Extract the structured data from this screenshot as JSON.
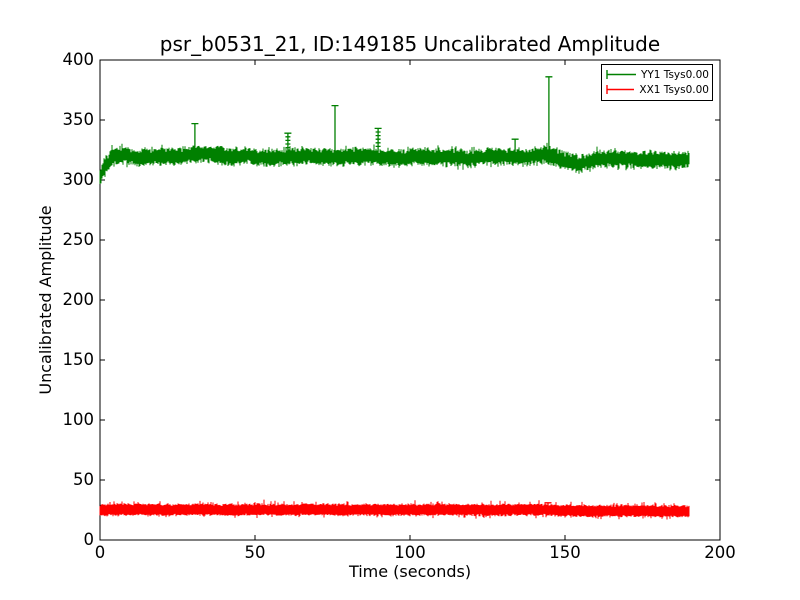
{
  "figure": {
    "title": "psr_b0531_21, ID:149185 Uncalibrated Amplitude",
    "xlabel": "Time (seconds)",
    "ylabel": "Uncalibrated Amplitude",
    "background": "#ffffff",
    "frame_color": "#000000"
  },
  "chart_data": {
    "type": "line",
    "title": "psr_b0531_21, ID:149185 Uncalibrated Amplitude",
    "xlabel": "Time (seconds)",
    "ylabel": "Uncalibrated Amplitude",
    "xlim": [
      0,
      200
    ],
    "ylim": [
      0,
      400
    ],
    "xticks": [
      0,
      50,
      100,
      150,
      200
    ],
    "yticks": [
      0,
      50,
      100,
      150,
      200,
      250,
      300,
      350,
      400
    ],
    "grid": false,
    "marker": "+",
    "legend": {
      "position": "upper right",
      "entries": [
        {
          "label": "YY1 Tsys0.00",
          "color": "#008000"
        },
        {
          "label": "XX1 Tsys0.00",
          "color": "#ff0000"
        }
      ]
    },
    "series": [
      {
        "name": "YY1 Tsys0.00",
        "color": "#008000",
        "t_range": [
          0,
          190
        ],
        "band_half_width": 4.5,
        "band_half_width_jitter": 2.5,
        "center_jitter": 1.5,
        "noise_seed": 42,
        "center_points": [
          [
            0,
            302
          ],
          [
            1,
            308
          ],
          [
            2,
            313
          ],
          [
            4,
            319
          ],
          [
            8,
            321
          ],
          [
            12,
            318
          ],
          [
            18,
            320
          ],
          [
            24,
            319
          ],
          [
            30,
            321
          ],
          [
            36,
            322
          ],
          [
            42,
            319
          ],
          [
            48,
            320
          ],
          [
            54,
            318
          ],
          [
            60,
            319
          ],
          [
            66,
            320
          ],
          [
            72,
            319
          ],
          [
            78,
            319
          ],
          [
            84,
            320
          ],
          [
            90,
            319
          ],
          [
            96,
            318
          ],
          [
            102,
            320
          ],
          [
            108,
            319
          ],
          [
            114,
            319
          ],
          [
            120,
            318
          ],
          [
            126,
            320
          ],
          [
            132,
            319
          ],
          [
            138,
            319
          ],
          [
            144,
            321
          ],
          [
            150,
            316
          ],
          [
            155,
            313
          ],
          [
            160,
            317
          ],
          [
            166,
            318
          ],
          [
            172,
            317
          ],
          [
            178,
            317
          ],
          [
            184,
            316
          ],
          [
            190,
            317
          ]
        ],
        "spikes": [
          {
            "t": 30.6,
            "peak": 347,
            "ladder": false
          },
          {
            "t": 60.6,
            "peak": 339,
            "ladder": true
          },
          {
            "t": 75.8,
            "peak": 362,
            "ladder": false
          },
          {
            "t": 89.7,
            "peak": 343,
            "ladder": true
          },
          {
            "t": 133.9,
            "peak": 334,
            "ladder": false
          },
          {
            "t": 144.8,
            "peak": 386,
            "ladder": false
          }
        ]
      },
      {
        "name": "XX1 Tsys0.00",
        "color": "#ff0000",
        "t_range": [
          0,
          190
        ],
        "band_half_width": 3.8,
        "band_half_width_jitter": 1.2,
        "center_jitter": 0.6,
        "noise_seed": 7,
        "center_points": [
          [
            0,
            25
          ],
          [
            10,
            25.5
          ],
          [
            20,
            25
          ],
          [
            30,
            25.5
          ],
          [
            40,
            25
          ],
          [
            50,
            25.5
          ],
          [
            60,
            25
          ],
          [
            70,
            25.5
          ],
          [
            80,
            25
          ],
          [
            90,
            25.5
          ],
          [
            100,
            25
          ],
          [
            110,
            25.5
          ],
          [
            120,
            25
          ],
          [
            130,
            25
          ],
          [
            140,
            25.5
          ],
          [
            150,
            24.5
          ],
          [
            160,
            24
          ],
          [
            170,
            24.5
          ],
          [
            180,
            24
          ],
          [
            190,
            24
          ]
        ],
        "spikes": [
          {
            "t": 144.5,
            "peak": 31,
            "ladder": false
          }
        ]
      }
    ]
  }
}
